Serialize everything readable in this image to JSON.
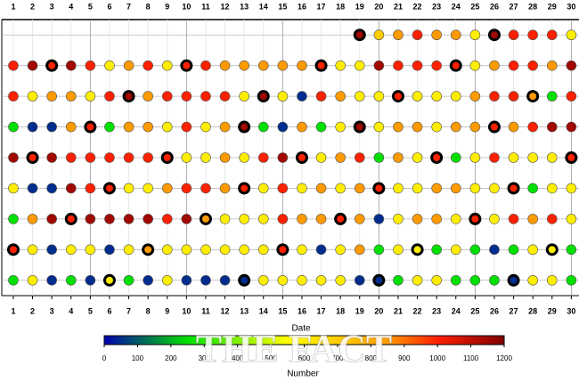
{
  "chart_data": {
    "type": "dotgrid",
    "x": [
      1,
      2,
      3,
      4,
      5,
      6,
      7,
      8,
      9,
      10,
      11,
      12,
      13,
      14,
      15,
      16,
      17,
      18,
      19,
      20,
      21,
      22,
      23,
      24,
      25,
      26,
      27,
      28,
      29,
      30
    ],
    "xlim": [
      0.4,
      30.4
    ],
    "xticks": [
      1,
      2,
      3,
      4,
      5,
      6,
      7,
      8,
      9,
      10,
      11,
      12,
      13,
      14,
      15,
      16,
      17,
      18,
      19,
      20,
      21,
      22,
      23,
      24,
      25,
      26,
      27,
      28,
      29,
      30
    ],
    "xlabel": "Date",
    "series": [
      {
        "values": [
          null,
          null,
          null,
          null,
          null,
          null,
          null,
          null,
          null,
          null,
          null,
          null,
          null,
          null,
          null,
          null,
          null,
          null,
          1150,
          700,
          850,
          1000,
          850,
          850,
          600,
          1150,
          1000,
          1000,
          1000,
          600
        ],
        "outlined": [
          19,
          26
        ]
      },
      {
        "values": [
          1000,
          1150,
          1000,
          1150,
          1000,
          600,
          850,
          1000,
          600,
          1000,
          1000,
          850,
          850,
          850,
          850,
          850,
          1000,
          600,
          600,
          1150,
          1000,
          1000,
          1000,
          1000,
          600,
          850,
          1000,
          1000,
          850,
          1150
        ],
        "outlined": [
          3,
          10,
          17,
          24
        ]
      },
      {
        "values": [
          1000,
          600,
          850,
          850,
          600,
          1000,
          1150,
          850,
          1000,
          1000,
          1000,
          1000,
          600,
          1150,
          600,
          50,
          1000,
          850,
          600,
          600,
          1000,
          600,
          600,
          600,
          850,
          1000,
          1000,
          850,
          250,
          1000
        ],
        "outlined": [
          7,
          14,
          21,
          28
        ]
      },
      {
        "values": [
          250,
          50,
          50,
          850,
          1000,
          250,
          850,
          850,
          600,
          1000,
          600,
          850,
          1150,
          250,
          50,
          850,
          250,
          600,
          1150,
          600,
          850,
          850,
          600,
          850,
          850,
          1000,
          850,
          1000,
          1150,
          1150
        ],
        "outlined": [
          5,
          13,
          19,
          26
        ]
      },
      {
        "values": [
          1150,
          1000,
          1150,
          1000,
          1000,
          1000,
          1000,
          1000,
          1000,
          600,
          600,
          850,
          600,
          1000,
          1150,
          1000,
          600,
          850,
          1000,
          250,
          850,
          600,
          1000,
          250,
          600,
          1000,
          600,
          600,
          600,
          1000
        ],
        "outlined": [
          2,
          9,
          16,
          23,
          30
        ]
      },
      {
        "values": [
          600,
          50,
          50,
          1150,
          1000,
          1000,
          600,
          600,
          850,
          1000,
          1000,
          850,
          1000,
          600,
          1000,
          600,
          850,
          600,
          850,
          1000,
          600,
          600,
          850,
          850,
          600,
          600,
          1000,
          250,
          600,
          600
        ],
        "outlined": [
          6,
          13,
          20,
          27
        ]
      },
      {
        "values": [
          250,
          850,
          1150,
          1000,
          1150,
          1150,
          1150,
          1150,
          1000,
          1150,
          850,
          600,
          600,
          600,
          1000,
          850,
          850,
          1000,
          850,
          50,
          600,
          850,
          850,
          600,
          1000,
          600,
          1000,
          850,
          1000,
          600
        ],
        "outlined": [
          4,
          11,
          18,
          25
        ]
      },
      {
        "values": [
          1000,
          600,
          50,
          600,
          600,
          50,
          600,
          850,
          600,
          600,
          600,
          600,
          600,
          600,
          1000,
          600,
          50,
          600,
          850,
          250,
          600,
          600,
          250,
          600,
          250,
          50,
          250,
          600,
          600,
          250
        ],
        "outlined": [
          1,
          8,
          15,
          22,
          29
        ]
      },
      {
        "values": [
          250,
          600,
          50,
          250,
          50,
          600,
          250,
          50,
          600,
          50,
          50,
          50,
          50,
          600,
          600,
          600,
          600,
          600,
          50,
          50,
          250,
          600,
          600,
          250,
          250,
          250,
          50,
          600,
          600,
          250
        ],
        "outlined": [
          6,
          13,
          20,
          27
        ]
      }
    ],
    "colorscale": [
      [
        0,
        "#0000b0"
      ],
      [
        250,
        "#00e000"
      ],
      [
        550,
        "#ffff00"
      ],
      [
        850,
        "#ff9a00"
      ],
      [
        1000,
        "#ff2000"
      ],
      [
        1200,
        "#800000"
      ]
    ],
    "colorbar_lim": [
      0,
      1200
    ],
    "colorbar_ticks": [
      0,
      100,
      200,
      300,
      400,
      500,
      600,
      700,
      800,
      900,
      1000,
      1100,
      1200
    ],
    "colorbar_label": "Number",
    "watermark": "THE FACT"
  }
}
